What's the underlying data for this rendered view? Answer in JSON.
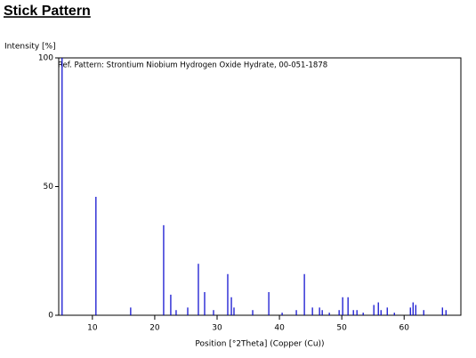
{
  "chart_data": {
    "type": "stick",
    "title": "Stick Pattern",
    "y_label": "Intensity [%]",
    "x_label": "Position [°2Theta] (Copper (Cu))",
    "annotation": "Ref. Pattern: Strontium Niobium Hydrogen Oxide Hydrate, 00-051-1878",
    "color": "#0000cc",
    "xlim": [
      4.6,
      69.1
    ],
    "xticks": [
      10,
      20,
      30,
      40,
      50,
      60
    ],
    "ylim": [
      0,
      100
    ],
    "yticks": [
      0,
      50,
      100
    ],
    "x": [
      5.14,
      10.57,
      16.14,
      21.43,
      22.57,
      23.43,
      25.29,
      27.0,
      28.0,
      29.43,
      31.71,
      32.29,
      32.71,
      35.71,
      38.29,
      40.43,
      42.71,
      44.0,
      45.29,
      46.43,
      46.86,
      48.0,
      49.57,
      50.14,
      51.0,
      51.86,
      52.43,
      53.43,
      55.14,
      55.86,
      56.29,
      57.29,
      58.43,
      61.0,
      61.43,
      61.86,
      63.14,
      66.14,
      66.71
    ],
    "values": [
      100,
      46,
      3,
      35,
      8,
      2,
      3,
      20,
      9,
      2,
      16,
      7,
      3,
      2,
      9,
      1,
      2,
      16,
      3,
      3,
      2,
      1,
      2,
      7,
      7,
      2,
      2,
      1,
      4,
      5,
      2,
      3,
      1,
      3,
      5,
      4,
      2,
      3,
      2
    ]
  }
}
